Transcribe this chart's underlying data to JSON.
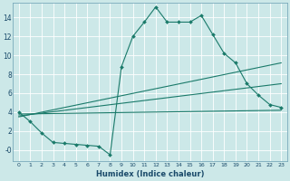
{
  "xlabel": "Humidex (Indice chaleur)",
  "background_color": "#cce8e8",
  "grid_color": "#ffffff",
  "line_color": "#1a7a6a",
  "xlim": [
    -0.5,
    23.5
  ],
  "ylim": [
    -1.2,
    15.5
  ],
  "xticks": [
    0,
    1,
    2,
    3,
    4,
    5,
    6,
    7,
    8,
    9,
    10,
    11,
    12,
    13,
    14,
    15,
    16,
    17,
    18,
    19,
    20,
    21,
    22,
    23
  ],
  "yticks": [
    0,
    2,
    4,
    6,
    8,
    10,
    12,
    14
  ],
  "ytick_labels": [
    "-0",
    "2",
    "4",
    "6",
    "8",
    "10",
    "12",
    "14"
  ],
  "line1_x": [
    0,
    1,
    2,
    3,
    4,
    5,
    6,
    7,
    8,
    9,
    10,
    11,
    12,
    13,
    14,
    15,
    16,
    17,
    18,
    19,
    20,
    21,
    22,
    23
  ],
  "line1_y": [
    4.0,
    3.0,
    1.8,
    0.8,
    0.7,
    0.6,
    0.5,
    0.4,
    -0.5,
    8.8,
    12.0,
    13.5,
    15.1,
    13.5,
    13.5,
    13.5,
    14.2,
    12.2,
    10.2,
    9.2,
    7.0,
    5.8,
    4.8,
    4.5
  ],
  "line2_x": [
    0,
    23
  ],
  "line2_y": [
    3.8,
    4.2
  ],
  "line3_x": [
    0,
    23
  ],
  "line3_y": [
    3.5,
    9.2
  ],
  "line4_x": [
    0,
    23
  ],
  "line4_y": [
    3.6,
    7.0
  ]
}
